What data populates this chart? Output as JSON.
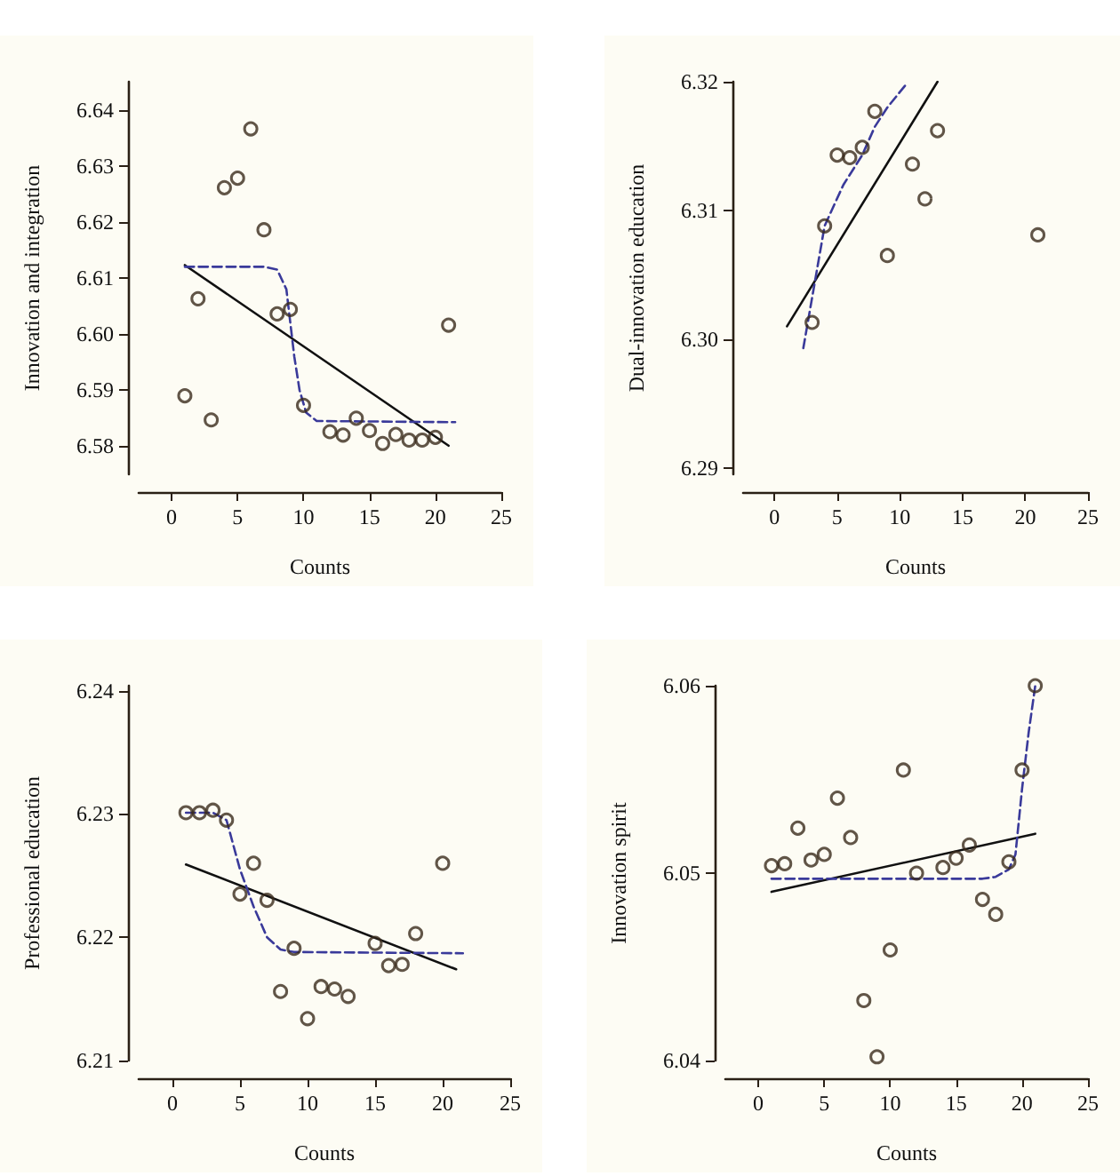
{
  "chart_data": [
    {
      "type": "scatter",
      "xlabel": "Counts",
      "ylabel": "Innovation and integration",
      "xlim": [
        -2.5,
        25
      ],
      "xticks": [
        0,
        5,
        10,
        15,
        20,
        25
      ],
      "ylim": [
        6.575,
        6.645
      ],
      "yticks": [
        6.58,
        6.59,
        {
          "value": 6.6,
          "label": "6.60"
        },
        6.61,
        6.62,
        6.63,
        6.64
      ],
      "series": [
        {
          "color": "#3a2b1c",
          "marker": "circle",
          "x": [
            1,
            2,
            3,
            4,
            5,
            6,
            7,
            8,
            9,
            10,
            12,
            13,
            14,
            15,
            16,
            17,
            18,
            19,
            20,
            21
          ],
          "values": [
            6.589,
            6.6063,
            6.5847,
            6.6261,
            6.6278,
            6.6366,
            6.6186,
            6.6036,
            6.6044,
            6.5873,
            6.5826,
            6.582,
            6.585,
            6.5828,
            6.5805,
            6.5821,
            6.5811,
            6.5811,
            6.5816,
            6.6016
          ]
        },
        {
          "type": "line",
          "color": "#111111",
          "marker": "none",
          "line_style": "solid",
          "x": [
            1,
            21
          ],
          "values": [
            6.6123,
            6.5801
          ]
        },
        {
          "type": "line",
          "color": "#3a3a9a",
          "marker": "none",
          "line_style": "dashed",
          "x": [
            1,
            7,
            8,
            8.7,
            9,
            9.3,
            9.7,
            10.2,
            11,
            21.5
          ],
          "values": [
            6.612,
            6.612,
            6.6115,
            6.608,
            6.602,
            6.596,
            6.59,
            6.586,
            6.5845,
            6.5843
          ]
        }
      ]
    },
    {
      "type": "scatter",
      "xlabel": "Counts",
      "ylabel": "Dual-innovation education",
      "xlim": [
        -2.5,
        25
      ],
      "xticks": [
        0,
        5,
        10,
        15,
        20,
        25
      ],
      "ylim": [
        6.2895,
        6.32
      ],
      "yticks": [
        {
          "value": 6.29,
          "label": "6.29"
        },
        {
          "value": 6.3,
          "label": "6.30"
        },
        6.31,
        6.32
      ],
      "series": [
        {
          "color": "#3a2b1c",
          "marker": "circle",
          "x": [
            3,
            4,
            5,
            6,
            7,
            8,
            9,
            11,
            12,
            13,
            21
          ],
          "values": [
            6.3013,
            6.3088,
            6.3143,
            6.3141,
            6.3149,
            6.3177,
            6.3065,
            6.3136,
            6.3109,
            6.3162,
            6.3081
          ]
        },
        {
          "type": "line",
          "color": "#111111",
          "marker": "none",
          "line_style": "solid",
          "x": [
            1,
            13
          ],
          "values": [
            6.301,
            6.32
          ]
        },
        {
          "type": "line",
          "color": "#3a3a9a",
          "marker": "none",
          "line_style": "dashed",
          "x": [
            2.3,
            4,
            5.5,
            7,
            8,
            9,
            10.5
          ],
          "values": [
            6.2993,
            6.3088,
            6.312,
            6.3143,
            6.3165,
            6.318,
            6.3198
          ]
        }
      ]
    },
    {
      "type": "scatter",
      "xlabel": "Counts",
      "ylabel": "Professional education",
      "xlim": [
        -2.5,
        25
      ],
      "xticks": [
        0,
        5,
        10,
        15,
        20,
        25
      ],
      "ylim": [
        6.21,
        6.2404
      ],
      "yticks": [
        6.21,
        6.22,
        6.23,
        6.24
      ],
      "series": [
        {
          "color": "#3a2b1c",
          "marker": "circle",
          "x": [
            1,
            2,
            3,
            4,
            5,
            6,
            7,
            8,
            9,
            10,
            11,
            12,
            13,
            15,
            16,
            17,
            18,
            20
          ],
          "values": [
            6.2301,
            6.2301,
            6.2303,
            6.2295,
            6.2235,
            6.226,
            6.223,
            6.2156,
            6.2191,
            6.2134,
            6.216,
            6.2158,
            6.2152,
            6.2195,
            6.2177,
            6.2178,
            6.2203,
            6.226
          ]
        },
        {
          "type": "line",
          "color": "#111111",
          "marker": "none",
          "line_style": "solid",
          "x": [
            1,
            21
          ],
          "values": [
            6.2259,
            6.2174
          ]
        },
        {
          "type": "line",
          "color": "#3a3a9a",
          "marker": "none",
          "line_style": "dashed",
          "x": [
            1,
            3,
            4,
            5,
            6,
            7,
            8,
            9,
            21.5
          ],
          "values": [
            6.2301,
            6.2301,
            6.2295,
            6.2255,
            6.2225,
            6.22,
            6.219,
            6.2188,
            6.2187
          ]
        }
      ]
    },
    {
      "type": "scatter",
      "xlabel": "Counts",
      "ylabel": "Innovation spirit",
      "xlim": [
        -2.5,
        25
      ],
      "xticks": [
        0,
        5,
        10,
        15,
        20,
        25
      ],
      "ylim": [
        6.04,
        6.06
      ],
      "yticks": [
        6.04,
        6.05,
        6.06
      ],
      "series": [
        {
          "color": "#3a2b1c",
          "marker": "circle",
          "x": [
            1,
            2,
            3,
            4,
            5,
            6,
            7,
            8,
            9,
            10,
            11,
            12,
            14,
            15,
            16,
            17,
            18,
            19,
            20,
            21
          ],
          "values": [
            6.0504,
            6.0505,
            6.0524,
            6.0507,
            6.051,
            6.054,
            6.0519,
            6.0432,
            6.0402,
            6.0459,
            6.0555,
            6.05,
            6.0503,
            6.0508,
            6.0515,
            6.0486,
            6.0478,
            6.0506,
            6.0555,
            6.06
          ]
        },
        {
          "type": "line",
          "color": "#111111",
          "marker": "none",
          "line_style": "solid",
          "x": [
            1,
            21
          ],
          "values": [
            6.049,
            6.0521
          ]
        },
        {
          "type": "line",
          "color": "#3a3a9a",
          "marker": "none",
          "line_style": "dashed",
          "x": [
            1,
            17,
            18,
            19,
            19.5,
            20,
            20.5,
            21
          ],
          "values": [
            6.0497,
            6.0497,
            6.0498,
            6.0502,
            6.051,
            6.0545,
            6.0575,
            6.06
          ]
        }
      ]
    }
  ]
}
